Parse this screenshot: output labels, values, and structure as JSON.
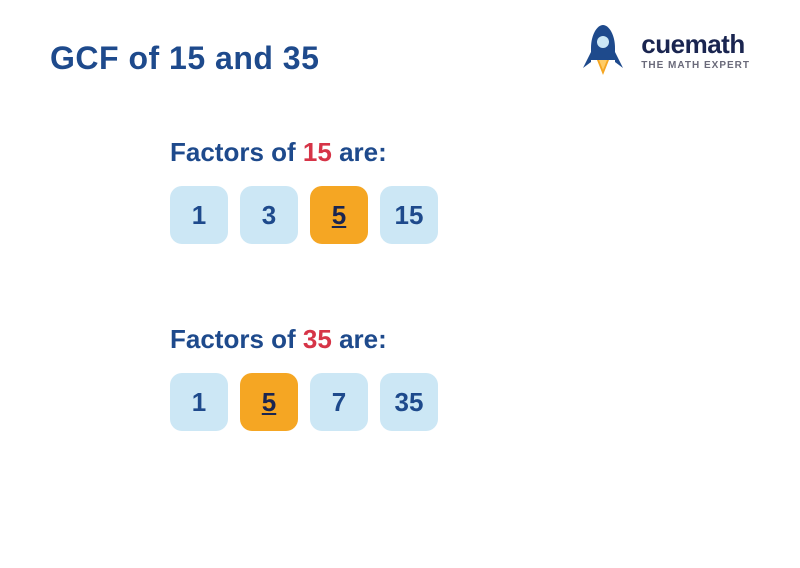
{
  "title": {
    "prefix": "GCF of ",
    "num1": "15",
    "mid": " and ",
    "num2": "35",
    "color_primary": "#1e4a8c",
    "fontsize": 32
  },
  "logo": {
    "brand": "cuemath",
    "tagline": "THE MATH EXPERT",
    "brand_color": "#1a2550",
    "tagline_color": "#6a6a7a",
    "rocket_body_color": "#1e4a8c",
    "rocket_flame_color": "#f5a623"
  },
  "colors": {
    "navy": "#1e4a8c",
    "red": "#d63447",
    "box_bg": "#cce7f5",
    "box_text": "#1e4a8c",
    "highlight_bg": "#f5a623",
    "highlight_text": "#1a2550",
    "background": "#ffffff"
  },
  "sections": [
    {
      "label_prefix": "Factors of ",
      "label_number": "15",
      "label_suffix": " are:",
      "factors": [
        {
          "value": "1",
          "highlighted": false
        },
        {
          "value": "3",
          "highlighted": false
        },
        {
          "value": "5",
          "highlighted": true
        },
        {
          "value": "15",
          "highlighted": false
        }
      ]
    },
    {
      "label_prefix": "Factors of ",
      "label_number": "35",
      "label_suffix": " are:",
      "factors": [
        {
          "value": "1",
          "highlighted": false
        },
        {
          "value": "5",
          "highlighted": true
        },
        {
          "value": "7",
          "highlighted": false
        },
        {
          "value": "35",
          "highlighted": false
        }
      ]
    }
  ],
  "style": {
    "box_radius": 12,
    "box_size": 58,
    "box_gap": 12,
    "section_label_fontsize": 26,
    "factor_fontsize": 26
  }
}
